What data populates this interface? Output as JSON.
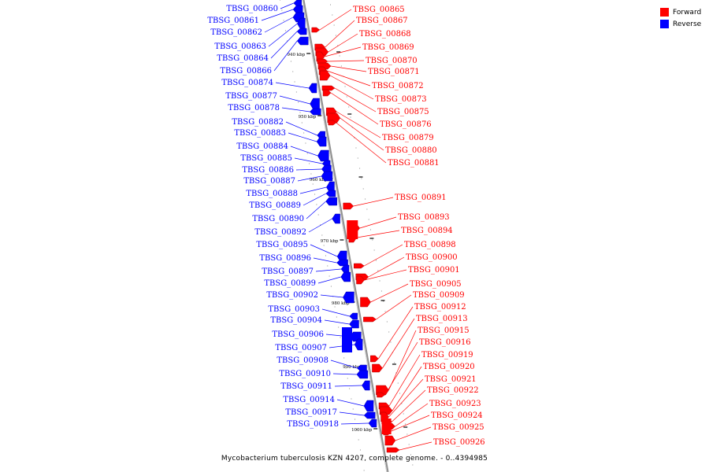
{
  "colors": {
    "forward": "#ff0000",
    "reverse": "#0000ff",
    "backbone": "#909090",
    "leader_forward": "#ff0000",
    "leader_reverse": "#0000ff"
  },
  "legend": [
    {
      "label": "Forward",
      "color": "#ff0000"
    },
    {
      "label": "Reverse",
      "color": "#0000ff"
    }
  ],
  "caption": "Mycobacterium tuberculosis KZN 4207, complete genome. - 0..4394985",
  "scale_labels": [
    "940 kbp",
    "950 kbp",
    "960 kbp",
    "970 kbp",
    "980 kbp",
    "990 kbp",
    "1000 kbp"
  ],
  "reverse_genes": [
    "TBSG_00860",
    "TBSG_00861",
    "TBSG_00862",
    "TBSG_00863",
    "TBSG_00864",
    "TBSG_00866",
    "TBSG_00874",
    "TBSG_00877",
    "TBSG_00878",
    "TBSG_00882",
    "TBSG_00883",
    "TBSG_00884",
    "TBSG_00885",
    "TBSG_00886",
    "TBSG_00887",
    "TBSG_00888",
    "TBSG_00889",
    "TBSG_00890",
    "TBSG_00892",
    "TBSG_00895",
    "TBSG_00896",
    "TBSG_00897",
    "TBSG_00899",
    "TBSG_00902",
    "TBSG_00903",
    "TBSG_00904",
    "TBSG_00906",
    "TBSG_00907",
    "TBSG_00908",
    "TBSG_00910",
    "TBSG_00911",
    "TBSG_00914",
    "TBSG_00917",
    "TBSG_00918"
  ],
  "forward_genes": [
    "TBSG_00865",
    "TBSG_00867",
    "TBSG_00868",
    "TBSG_00869",
    "TBSG_00870",
    "TBSG_00871",
    "TBSG_00872",
    "TBSG_00873",
    "TBSG_00875",
    "TBSG_00876",
    "TBSG_00879",
    "TBSG_00880",
    "TBSG_00881",
    "TBSG_00891",
    "TBSG_00893",
    "TBSG_00894",
    "TBSG_00898",
    "TBSG_00900",
    "TBSG_00901",
    "TBSG_00905",
    "TBSG_00909",
    "TBSG_00912",
    "TBSG_00913",
    "TBSG_00915",
    "TBSG_00916",
    "TBSG_00919",
    "TBSG_00920",
    "TBSG_00921",
    "TBSG_00922",
    "TBSG_00923",
    "TBSG_00924",
    "TBSG_00925",
    "TBSG_00926"
  ]
}
